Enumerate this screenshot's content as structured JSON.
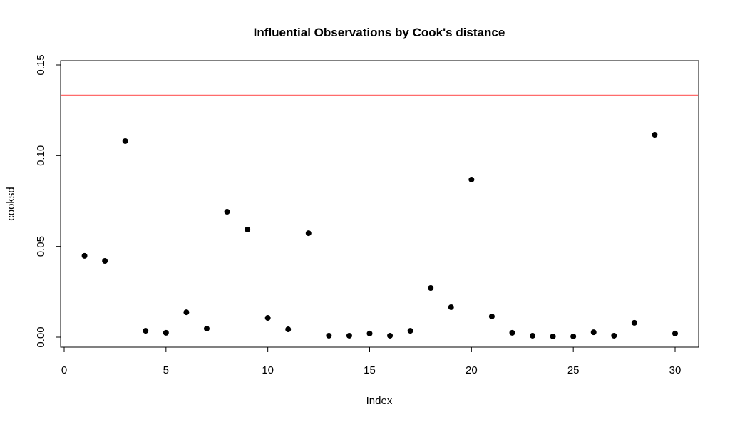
{
  "chart_data": {
    "type": "scatter",
    "title": "Influential Observations by Cook's distance",
    "xlabel": "Index",
    "ylabel": "cooksd",
    "xlim": [
      0,
      30
    ],
    "ylim": [
      0,
      0.15
    ],
    "x_ticks": [
      "0",
      "5",
      "10",
      "15",
      "20",
      "25",
      "30"
    ],
    "y_ticks": [
      "0.00",
      "0.05",
      "0.10",
      "0.15"
    ],
    "grid": false,
    "x": [
      1,
      2,
      3,
      4,
      5,
      6,
      7,
      8,
      9,
      10,
      11,
      12,
      13,
      14,
      15,
      16,
      17,
      18,
      19,
      20,
      21,
      22,
      23,
      24,
      25,
      26,
      27,
      28,
      29,
      30
    ],
    "y": [
      0.0448,
      0.042,
      0.108,
      0.0035,
      0.0024,
      0.0137,
      0.0047,
      0.0691,
      0.0593,
      0.0106,
      0.0043,
      0.0573,
      0.0008,
      0.0008,
      0.002,
      0.0008,
      0.0035,
      0.0271,
      0.0165,
      0.0868,
      0.0114,
      0.0024,
      0.0008,
      0.0004,
      0.0004,
      0.0027,
      0.0008,
      0.0079,
      0.1115,
      0.002
    ],
    "point_color": "#000000",
    "reference_line": {
      "y": 0.1333,
      "color": "#ff6b6b"
    }
  }
}
